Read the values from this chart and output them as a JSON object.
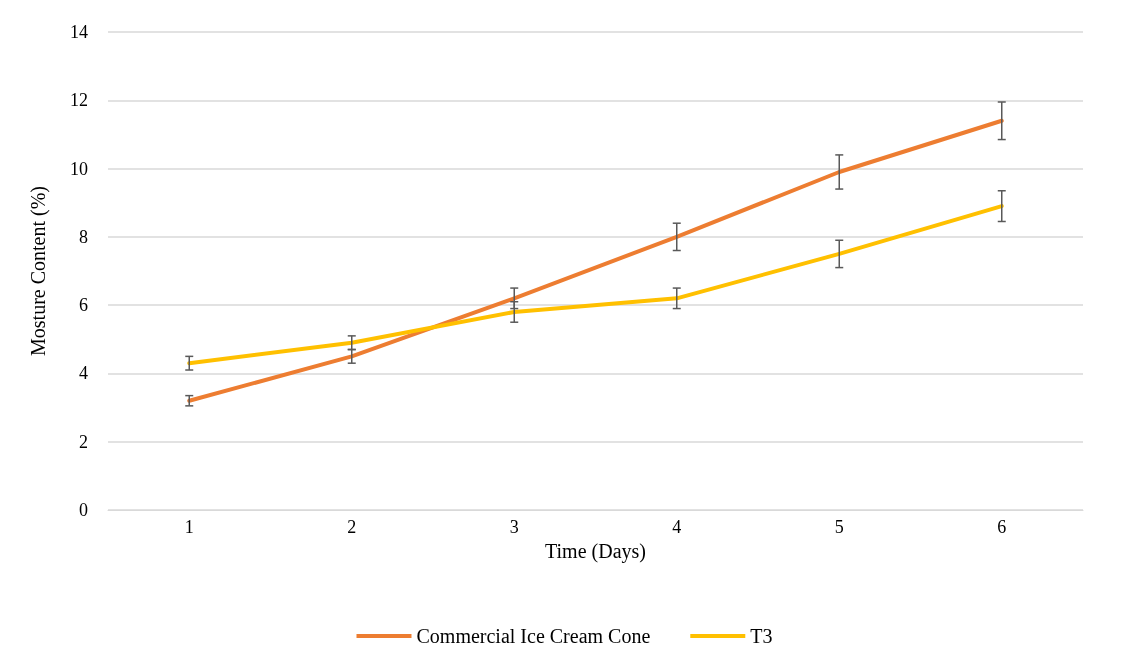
{
  "chart_data": {
    "type": "line",
    "xlabel": "Time (Days)",
    "ylabel": "Mosture Content (%)",
    "categories": [
      "1",
      "2",
      "3",
      "4",
      "5",
      "6"
    ],
    "series": [
      {
        "name": "Commercial Ice Cream Cone",
        "color": "#ed7d31",
        "values": [
          3.2,
          4.5,
          6.2,
          8.0,
          9.9,
          11.4
        ],
        "errors": [
          0.15,
          0.2,
          0.3,
          0.4,
          0.5,
          0.55
        ]
      },
      {
        "name": "T3",
        "color": "#ffc000",
        "values": [
          4.3,
          4.9,
          5.8,
          6.2,
          7.5,
          8.9
        ],
        "errors": [
          0.2,
          0.2,
          0.3,
          0.3,
          0.4,
          0.45
        ]
      }
    ],
    "ylim": [
      0,
      14
    ],
    "yticks": [
      0,
      2,
      4,
      6,
      8,
      10,
      12,
      14
    ],
    "grid": "y",
    "legend": "bottom",
    "marker": "none",
    "line_style": "solid"
  }
}
